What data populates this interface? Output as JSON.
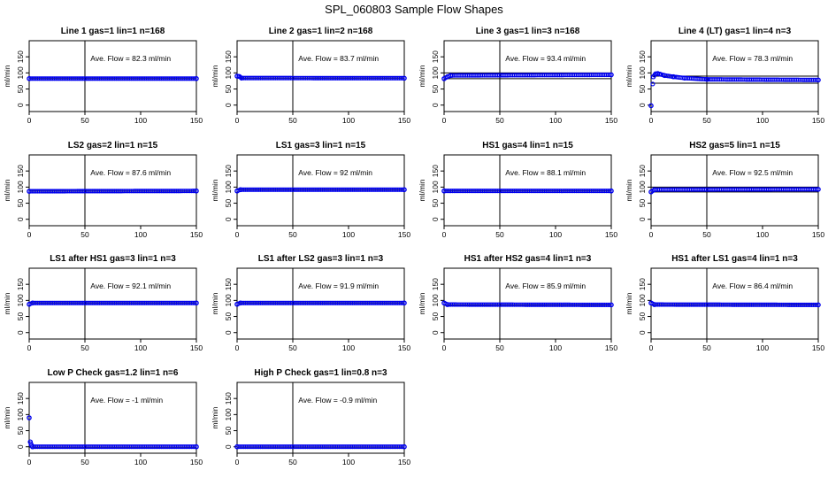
{
  "title": "SPL_060803  Sample Flow Shapes",
  "chart_data": [
    {
      "type": "scatter",
      "title": "Line 1 gas=1 lin=1 n=168",
      "ylabel": "ml/min",
      "annotation": "Ave. Flow =  82.3  ml/min",
      "xlim": [
        0,
        150
      ],
      "ylim": [
        -20,
        200
      ],
      "xticks": [
        0,
        50,
        100,
        150
      ],
      "yticks": [
        0,
        50,
        100,
        150
      ],
      "vline": 50,
      "hlines": [
        82.3
      ],
      "x": [
        0,
        150
      ],
      "y": [
        82.3,
        82.3
      ]
    },
    {
      "type": "scatter",
      "title": "Line 2 gas=1 lin=2 n=168",
      "ylabel": "ml/min",
      "annotation": "Ave. Flow =  83.7  ml/min",
      "xlim": [
        0,
        150
      ],
      "ylim": [
        -20,
        200
      ],
      "xticks": [
        0,
        50,
        100,
        150
      ],
      "yticks": [
        0,
        50,
        100,
        150
      ],
      "vline": 50,
      "hlines": [
        83.7
      ],
      "x": [
        0,
        2,
        4,
        150
      ],
      "y": [
        90,
        89,
        84,
        83.5
      ]
    },
    {
      "type": "scatter",
      "title": "Line 3 gas=1 lin=3 n=168",
      "ylabel": "ml/min",
      "annotation": "Ave. Flow =  93.4  ml/min",
      "xlim": [
        0,
        150
      ],
      "ylim": [
        -20,
        200
      ],
      "xticks": [
        0,
        50,
        100,
        150
      ],
      "yticks": [
        0,
        50,
        100,
        150
      ],
      "vline": 50,
      "hlines": [
        82,
        100
      ],
      "x": [
        0,
        3,
        6,
        150
      ],
      "y": [
        82,
        88,
        92,
        94
      ]
    },
    {
      "type": "scatter",
      "title": "Line 4 (LT) gas=1 lin=4 n=3",
      "ylabel": "ml/min",
      "annotation": "Ave. Flow =  78.3  ml/min",
      "xlim": [
        0,
        150
      ],
      "ylim": [
        -20,
        200
      ],
      "xticks": [
        0,
        50,
        100,
        150
      ],
      "yticks": [
        0,
        50,
        100,
        150
      ],
      "vline": 50,
      "hlines": [
        68,
        90
      ],
      "x": [
        0,
        2,
        4,
        6,
        8,
        12,
        20,
        30,
        50,
        150
      ],
      "y": [
        -2,
        88,
        97,
        98,
        96,
        92,
        88,
        84,
        80,
        78
      ]
    },
    {
      "type": "scatter",
      "title": "LS2 gas=2 lin=1 n=15",
      "ylabel": "ml/min",
      "annotation": "Ave. Flow =  87.6  ml/min",
      "xlim": [
        0,
        150
      ],
      "ylim": [
        -20,
        200
      ],
      "xticks": [
        0,
        50,
        100,
        150
      ],
      "yticks": [
        0,
        50,
        100,
        150
      ],
      "vline": 50,
      "hlines": [
        87.6
      ],
      "x": [
        0,
        150
      ],
      "y": [
        87,
        88
      ]
    },
    {
      "type": "scatter",
      "title": "LS1 gas=3 lin=1 n=15",
      "ylabel": "ml/min",
      "annotation": "Ave. Flow =  92  ml/min",
      "xlim": [
        0,
        150
      ],
      "ylim": [
        -20,
        200
      ],
      "xticks": [
        0,
        50,
        100,
        150
      ],
      "yticks": [
        0,
        50,
        100,
        150
      ],
      "vline": 50,
      "hlines": [
        92
      ],
      "x": [
        0,
        3,
        150
      ],
      "y": [
        88,
        92,
        92
      ]
    },
    {
      "type": "scatter",
      "title": "HS1 gas=4 lin=1 n=15",
      "ylabel": "ml/min",
      "annotation": "Ave. Flow =  88.1  ml/min",
      "xlim": [
        0,
        150
      ],
      "ylim": [
        -20,
        200
      ],
      "xticks": [
        0,
        50,
        100,
        150
      ],
      "yticks": [
        0,
        50,
        100,
        150
      ],
      "vline": 50,
      "hlines": [
        88.1
      ],
      "x": [
        0,
        150
      ],
      "y": [
        88,
        88
      ]
    },
    {
      "type": "scatter",
      "title": "HS2 gas=5 lin=1 n=15",
      "ylabel": "ml/min",
      "annotation": "Ave. Flow =  92.5  ml/min",
      "xlim": [
        0,
        150
      ],
      "ylim": [
        -20,
        200
      ],
      "xticks": [
        0,
        50,
        100,
        150
      ],
      "yticks": [
        0,
        50,
        100,
        150
      ],
      "vline": 50,
      "hlines": [
        85,
        100
      ],
      "x": [
        0,
        3,
        150
      ],
      "y": [
        85,
        92,
        93
      ]
    },
    {
      "type": "scatter",
      "title": "LS1 after HS1 gas=3 lin=1 n=3",
      "ylabel": "ml/min",
      "annotation": "Ave. Flow =  92.1  ml/min",
      "xlim": [
        0,
        150
      ],
      "ylim": [
        -20,
        200
      ],
      "xticks": [
        0,
        50,
        100,
        150
      ],
      "yticks": [
        0,
        50,
        100,
        150
      ],
      "vline": 50,
      "hlines": [
        92.1
      ],
      "x": [
        0,
        3,
        150
      ],
      "y": [
        88,
        92,
        92
      ]
    },
    {
      "type": "scatter",
      "title": "LS1 after LS2 gas=3 lin=1 n=3",
      "ylabel": "ml/min",
      "annotation": "Ave. Flow =  91.9  ml/min",
      "xlim": [
        0,
        150
      ],
      "ylim": [
        -20,
        200
      ],
      "xticks": [
        0,
        50,
        100,
        150
      ],
      "yticks": [
        0,
        50,
        100,
        150
      ],
      "vline": 50,
      "hlines": [
        91.9
      ],
      "x": [
        0,
        3,
        150
      ],
      "y": [
        88,
        92,
        92
      ]
    },
    {
      "type": "scatter",
      "title": "HS1 after HS2 gas=4 lin=1 n=3",
      "ylabel": "ml/min",
      "annotation": "Ave. Flow =  85.9  ml/min",
      "xlim": [
        0,
        150
      ],
      "ylim": [
        -20,
        200
      ],
      "xticks": [
        0,
        50,
        100,
        150
      ],
      "yticks": [
        0,
        50,
        100,
        150
      ],
      "vline": 50,
      "hlines": [
        85.9
      ],
      "x": [
        0,
        3,
        150
      ],
      "y": [
        92,
        87,
        86
      ]
    },
    {
      "type": "scatter",
      "title": "HS1 after LS1 gas=4 lin=1 n=3",
      "ylabel": "ml/min",
      "annotation": "Ave. Flow =  86.4  ml/min",
      "xlim": [
        0,
        150
      ],
      "ylim": [
        -20,
        200
      ],
      "xticks": [
        0,
        50,
        100,
        150
      ],
      "yticks": [
        0,
        50,
        100,
        150
      ],
      "vline": 50,
      "hlines": [
        86.4
      ],
      "x": [
        0,
        3,
        150
      ],
      "y": [
        92,
        87,
        86
      ]
    },
    {
      "type": "scatter",
      "title": "Low P Check gas=1.2 lin=1 n=6",
      "ylabel": "ml/min",
      "annotation": "Ave. Flow =  -1  ml/min",
      "xlim": [
        0,
        150
      ],
      "ylim": [
        -20,
        200
      ],
      "xticks": [
        0,
        50,
        100,
        150
      ],
      "yticks": [
        0,
        50,
        100,
        150
      ],
      "vline": 50,
      "hlines": [
        -1
      ],
      "x": [
        0,
        1,
        2,
        3,
        150
      ],
      "y": [
        90,
        15,
        5,
        0,
        0
      ]
    },
    {
      "type": "scatter",
      "title": "High P Check gas=1 lin=0.8 n=3",
      "ylabel": "ml/min",
      "annotation": "Ave. Flow =  -0.9  ml/min",
      "xlim": [
        0,
        150
      ],
      "ylim": [
        -20,
        200
      ],
      "xticks": [
        0,
        50,
        100,
        150
      ],
      "yticks": [
        0,
        50,
        100,
        150
      ],
      "vline": 50,
      "hlines": [
        -0.9
      ],
      "x": [
        0,
        150
      ],
      "y": [
        0,
        0
      ]
    }
  ],
  "colors": {
    "points": "#0000ee",
    "axes": "#000000"
  }
}
